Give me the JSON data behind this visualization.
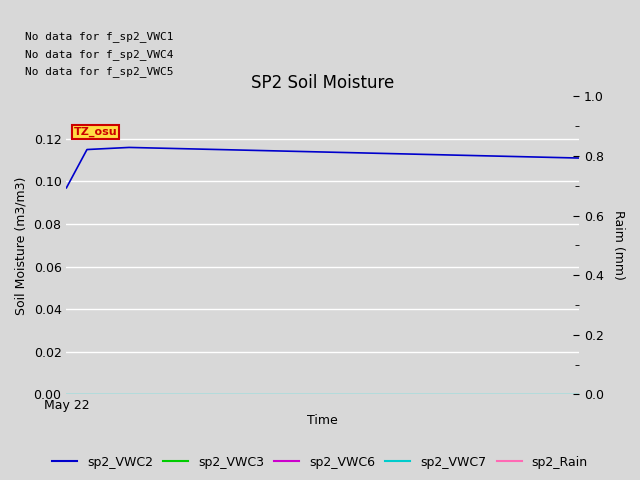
{
  "title": "SP2 Soil Moisture",
  "xlabel": "Time",
  "ylabel_left": "Soil Moisture (m3/m3)",
  "ylabel_right": "Raim (mm)",
  "no_data_texts": [
    "No data for f_sp2_VWC1",
    "No data for f_sp2_VWC4",
    "No data for f_sp2_VWC5"
  ],
  "tz_label": "TZ_osu",
  "tz_bg_color": "#FFDD44",
  "tz_border_color": "#CC0000",
  "ylim_left": [
    0.0,
    0.14
  ],
  "ylim_right": [
    0.0,
    1.0
  ],
  "yticks_left": [
    0.0,
    0.02,
    0.04,
    0.06,
    0.08,
    0.1,
    0.12
  ],
  "yticks_right": [
    0.0,
    0.2,
    0.4,
    0.6,
    0.8,
    1.0
  ],
  "xticklabel": "May 22",
  "bg_color": "#D8D8D8",
  "plot_bg_color": "#D8D8D8",
  "line_sp2_VWC2_color": "#0000CC",
  "line_sp2_VWC3_color": "#00CC00",
  "line_sp2_VWC6_color": "#CC00CC",
  "line_sp2_VWC7_color": "#00CCCC",
  "line_sp2_Rain_color": "#FF69B4",
  "legend_entries": [
    "sp2_VWC2",
    "sp2_VWC3",
    "sp2_VWC6",
    "sp2_VWC7",
    "sp2_Rain"
  ],
  "legend_colors": [
    "#0000CC",
    "#00CC00",
    "#CC00CC",
    "#00CCCC",
    "#FF69B4"
  ]
}
